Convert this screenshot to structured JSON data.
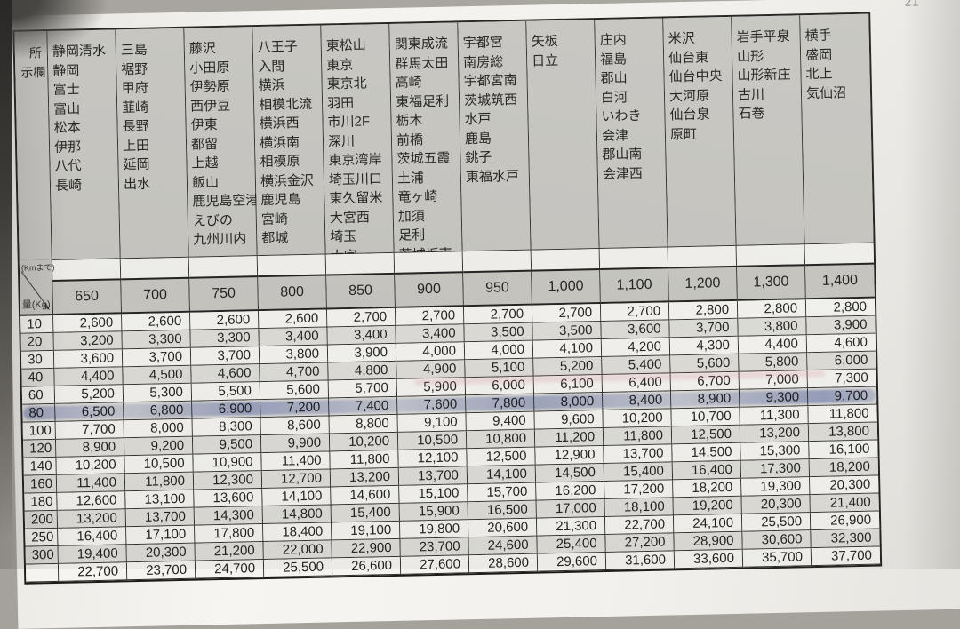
{
  "page": {
    "corner_mark": "21"
  },
  "colors": {
    "highlighter_blue": "#5b6fb4",
    "header_gray": "#c6c5c0",
    "paper_white": "#f4f3ef",
    "stripe_gray": "#deddd8",
    "border_black": "#1b1b19"
  },
  "table": {
    "corner_header_lines": [
      "所",
      "示欄"
    ],
    "distance_unit_label": "(Kmまで)",
    "weight_unit_label": "量(Kg)",
    "columns": [
      {
        "distance": "650",
        "cities": [
          "静岡清水",
          "静岡",
          "富士",
          "富山",
          "松本",
          "伊那",
          "八代",
          "長崎"
        ]
      },
      {
        "distance": "700",
        "cities": [
          "三島",
          "裾野",
          "甲府",
          "韮崎",
          "長野",
          "上田",
          "延岡",
          "出水"
        ]
      },
      {
        "distance": "750",
        "cities": [
          "藤沢",
          "小田原",
          "伊勢原",
          "西伊豆",
          "伊東",
          "都留",
          "上越",
          "飯山",
          "鹿児島空港",
          "えびの",
          "九州川内"
        ]
      },
      {
        "distance": "800",
        "cities": [
          "八王子",
          "入間",
          "横浜",
          "相模北流",
          "横浜西",
          "横浜南",
          "相模原",
          "横浜金沢",
          "鹿児島",
          "宮崎",
          "都城"
        ]
      },
      {
        "distance": "850",
        "cities": [
          "東松山",
          "東京",
          "東京北",
          "羽田",
          "市川2F",
          "深川",
          "東京湾岸",
          "埼玉川口",
          "東久留米",
          "大宮西",
          "埼玉",
          "大宮"
        ]
      },
      {
        "distance": "900",
        "cities": [
          "関東成流",
          "群馬太田",
          "高崎",
          "東福足利",
          "栃木",
          "前橋",
          "茨城五霞",
          "土浦",
          "竜ヶ崎",
          "加須",
          "足利",
          "茨城坂東"
        ]
      },
      {
        "distance": "950",
        "cities": [
          "宇都宮",
          "南房総",
          "宇都宮南",
          "茨城筑西",
          "水戸",
          "鹿島",
          "銚子",
          "東福水戸"
        ]
      },
      {
        "distance": "1,000",
        "cities": [
          "矢板",
          "日立"
        ]
      },
      {
        "distance": "1,100",
        "cities": [
          "庄内",
          "福島",
          "郡山",
          "白河",
          "いわき",
          "会津",
          "郡山南",
          "会津西"
        ]
      },
      {
        "distance": "1,200",
        "cities": [
          "米沢",
          "仙台東",
          "仙台中央",
          "大河原",
          "仙台泉",
          "原町"
        ]
      },
      {
        "distance": "1,300",
        "cities": [
          "岩手平泉",
          "山形",
          "山形新庄",
          "古川",
          "石巻"
        ]
      },
      {
        "distance": "1,400",
        "cities": [
          "横手",
          "盛岡",
          "北上",
          "気仙沼"
        ]
      }
    ],
    "rows": [
      {
        "weight": "10",
        "values": [
          "2,600",
          "2,600",
          "2,600",
          "2,600",
          "2,700",
          "2,700",
          "2,700",
          "2,700",
          "2,700",
          "2,800",
          "2,800",
          "2,800"
        ]
      },
      {
        "weight": "20",
        "values": [
          "3,200",
          "3,300",
          "3,300",
          "3,400",
          "3,400",
          "3,400",
          "3,500",
          "3,500",
          "3,600",
          "3,700",
          "3,800",
          "3,900"
        ]
      },
      {
        "weight": "30",
        "values": [
          "3,600",
          "3,700",
          "3,700",
          "3,800",
          "3,900",
          "4,000",
          "4,000",
          "4,100",
          "4,200",
          "4,300",
          "4,400",
          "4,600"
        ]
      },
      {
        "weight": "40",
        "values": [
          "4,400",
          "4,500",
          "4,600",
          "4,700",
          "4,800",
          "4,900",
          "5,100",
          "5,200",
          "5,400",
          "5,600",
          "5,800",
          "6,000"
        ]
      },
      {
        "weight": "60",
        "values": [
          "5,200",
          "5,300",
          "5,500",
          "5,600",
          "5,700",
          "5,900",
          "6,000",
          "6,100",
          "6,400",
          "6,700",
          "7,000",
          "7,300"
        ],
        "smudge": true
      },
      {
        "weight": "80",
        "values": [
          "6,500",
          "6,800",
          "6,900",
          "7,200",
          "7,400",
          "7,600",
          "7,800",
          "8,000",
          "8,400",
          "8,900",
          "9,300",
          "9,700"
        ],
        "highlight": true
      },
      {
        "weight": "100",
        "values": [
          "7,700",
          "8,000",
          "8,300",
          "8,600",
          "8,800",
          "9,100",
          "9,400",
          "9,600",
          "10,200",
          "10,700",
          "11,300",
          "11,800"
        ]
      },
      {
        "weight": "120",
        "values": [
          "8,900",
          "9,200",
          "9,500",
          "9,900",
          "10,200",
          "10,500",
          "10,800",
          "11,200",
          "11,800",
          "12,500",
          "13,200",
          "13,800"
        ]
      },
      {
        "weight": "140",
        "values": [
          "10,200",
          "10,500",
          "10,900",
          "11,400",
          "11,800",
          "12,100",
          "12,500",
          "12,900",
          "13,700",
          "14,500",
          "15,300",
          "16,100"
        ]
      },
      {
        "weight": "160",
        "values": [
          "11,400",
          "11,800",
          "12,300",
          "12,700",
          "13,200",
          "13,700",
          "14,100",
          "14,500",
          "15,400",
          "16,400",
          "17,300",
          "18,200"
        ]
      },
      {
        "weight": "180",
        "values": [
          "12,600",
          "13,100",
          "13,600",
          "14,100",
          "14,600",
          "15,100",
          "15,700",
          "16,200",
          "17,200",
          "18,200",
          "19,300",
          "20,300"
        ]
      },
      {
        "weight": "200",
        "values": [
          "13,200",
          "13,700",
          "14,300",
          "14,800",
          "15,400",
          "15,900",
          "16,500",
          "17,000",
          "18,100",
          "19,200",
          "20,300",
          "21,400"
        ]
      },
      {
        "weight": "250",
        "values": [
          "16,400",
          "17,100",
          "17,800",
          "18,400",
          "19,100",
          "19,800",
          "20,600",
          "21,300",
          "22,700",
          "24,100",
          "25,500",
          "26,900"
        ]
      },
      {
        "weight": "300",
        "values": [
          "19,400",
          "20,300",
          "21,200",
          "22,000",
          "22,900",
          "23,700",
          "24,600",
          "25,400",
          "27,200",
          "28,900",
          "30,600",
          "32,300"
        ]
      },
      {
        "weight": "",
        "values": [
          "22,700",
          "23,700",
          "24,700",
          "25,500",
          "26,600",
          "27,600",
          "28,600",
          "29,600",
          "31,600",
          "33,600",
          "35,700",
          "37,700"
        ],
        "partial": true
      }
    ]
  }
}
